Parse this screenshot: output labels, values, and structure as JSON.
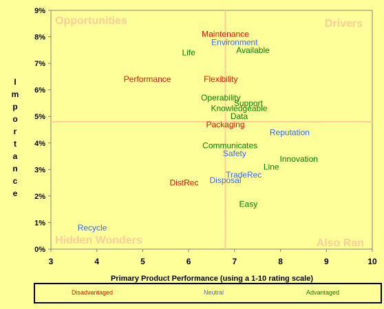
{
  "chart_data": {
    "type": "scatter",
    "xlabel": "Primary Product Performance (using a 1-10 rating scale)",
    "ylabel": "Importance",
    "xlim": [
      3,
      10
    ],
    "ylim": [
      0,
      9
    ],
    "x_ticks": [
      "3",
      "4",
      "5",
      "6",
      "7",
      "8",
      "9",
      "10"
    ],
    "y_ticks": [
      "0%",
      "1%",
      "2%",
      "3%",
      "4%",
      "5%",
      "6%",
      "7%",
      "8%",
      "9%"
    ],
    "y_unit": "%",
    "grid": false,
    "reference_lines": {
      "x": 6.8,
      "y": 4.8
    },
    "quadrant_labels": {
      "top_left": "Opportunities",
      "top_right": "Drivers",
      "bottom_left": "Hidden Wonders",
      "bottom_right": "Also Ran"
    },
    "colors": {
      "Disadvantaged": "#ff0000",
      "Neutral": "#3366ff",
      "Advantaged": "#008000",
      "quadrant_label": "#ffcc99",
      "reference_line": "#ffcc99"
    },
    "legend": {
      "placement": "bottom",
      "entries": [
        "Disadvantaged",
        "Neutral",
        "Advantaged"
      ]
    },
    "points": [
      {
        "label": "Maintenance",
        "x": 6.8,
        "y": 8.1,
        "group": "Disadvantaged"
      },
      {
        "label": "Environment",
        "x": 7.0,
        "y": 7.8,
        "group": "Neutral"
      },
      {
        "label": "Available",
        "x": 7.4,
        "y": 7.5,
        "group": "Advantaged"
      },
      {
        "label": "Life",
        "x": 6.0,
        "y": 7.4,
        "group": "Advantaged"
      },
      {
        "label": "Performance",
        "x": 5.1,
        "y": 6.4,
        "group": "Disadvantaged"
      },
      {
        "label": "Flexibility",
        "x": 6.7,
        "y": 6.4,
        "group": "Disadvantaged"
      },
      {
        "label": "Operability",
        "x": 6.7,
        "y": 5.7,
        "group": "Advantaged"
      },
      {
        "label": "Support",
        "x": 7.3,
        "y": 5.5,
        "group": "Advantaged"
      },
      {
        "label": "Knowledgeable",
        "x": 7.1,
        "y": 5.3,
        "group": "Advantaged"
      },
      {
        "label": "Data",
        "x": 7.1,
        "y": 5.0,
        "group": "Advantaged"
      },
      {
        "label": "Packaging",
        "x": 6.8,
        "y": 4.7,
        "group": "Disadvantaged"
      },
      {
        "label": "Reputation",
        "x": 8.2,
        "y": 4.4,
        "group": "Neutral"
      },
      {
        "label": "Communicates",
        "x": 6.9,
        "y": 3.9,
        "group": "Advantaged"
      },
      {
        "label": "Safety",
        "x": 7.0,
        "y": 3.6,
        "group": "Neutral"
      },
      {
        "label": "Innovation",
        "x": 8.4,
        "y": 3.4,
        "group": "Advantaged"
      },
      {
        "label": "Line",
        "x": 7.8,
        "y": 3.1,
        "group": "Advantaged"
      },
      {
        "label": "TradeRec",
        "x": 7.2,
        "y": 2.8,
        "group": "Neutral"
      },
      {
        "label": "Disposal",
        "x": 6.8,
        "y": 2.6,
        "group": "Neutral"
      },
      {
        "label": "DistRec",
        "x": 5.9,
        "y": 2.5,
        "group": "Disadvantaged"
      },
      {
        "label": "Easy",
        "x": 7.3,
        "y": 1.7,
        "group": "Advantaged"
      },
      {
        "label": "Recycle",
        "x": 3.9,
        "y": 0.8,
        "group": "Neutral"
      }
    ]
  }
}
